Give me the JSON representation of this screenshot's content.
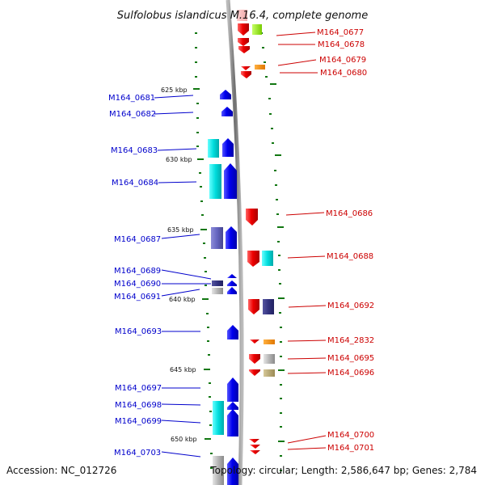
{
  "title": "Sulfolobus islandicus M.16.4, complete genome",
  "footer": {
    "accession": "Accession: NC_012726",
    "info": "Topology: circular; Length: 2,586,647 bp; Genes: 2,784"
  },
  "ticks": [
    "625 kbp",
    "630 kbp",
    "635 kbp",
    "640 kbp",
    "645 kbp",
    "650 kbp"
  ],
  "left_labels": [
    "M164_0681",
    "M164_0682",
    "M164_0683",
    "M164_0684",
    "M164_0687",
    "M164_0689",
    "M164_0690",
    "M164_0691",
    "M164_0693",
    "M164_0697",
    "M164_0698",
    "M164_0699",
    "M164_0703"
  ],
  "right_labels": [
    "M164_0677",
    "M164_0678",
    "M164_0679",
    "M164_0680",
    "M164_0686",
    "M164_0688",
    "M164_0692",
    "M164_2832",
    "M164_0695",
    "M164_0696",
    "M164_0700",
    "M164_0701"
  ],
  "colors": {
    "forward_gene": "#0000ee",
    "reverse_gene": "#ee0000",
    "cyan_feature": "#00dddd",
    "left_label": "#0000cc",
    "right_label": "#cc0000",
    "backbone": "#888888",
    "tick": "#117711"
  }
}
